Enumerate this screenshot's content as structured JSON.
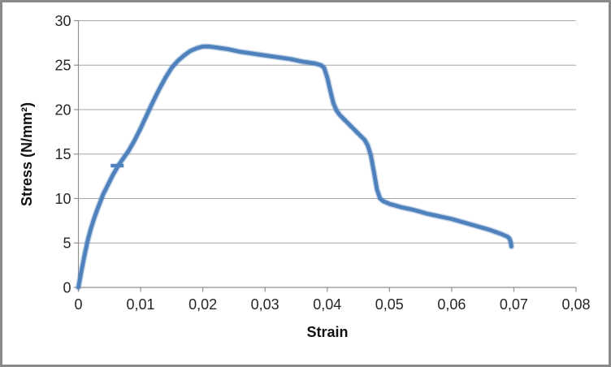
{
  "chart_data": {
    "type": "scatter",
    "title": "",
    "xlabel": "Strain",
    "ylabel": "Stress (N/mm²)",
    "xlim": [
      0,
      0.08
    ],
    "ylim": [
      0,
      30
    ],
    "x_ticks": [
      0,
      0.01,
      0.02,
      0.03,
      0.04,
      0.05,
      0.06,
      0.07,
      0.08
    ],
    "x_tick_labels": [
      "0",
      "0,01",
      "0,02",
      "0,03",
      "0,04",
      "0,05",
      "0,06",
      "0,07",
      "0,08"
    ],
    "y_ticks": [
      0,
      5,
      10,
      15,
      20,
      25,
      30
    ],
    "y_tick_labels": [
      "0",
      "5",
      "10",
      "15",
      "20",
      "25",
      "30"
    ],
    "grid": "horizontal",
    "legend": "none",
    "series": [
      {
        "name": "stress-strain-curve",
        "color": "#4f81bd",
        "points": [
          [
            0.0,
            0.0
          ],
          [
            0.0005,
            1.9
          ],
          [
            0.001,
            3.7
          ],
          [
            0.0015,
            5.3
          ],
          [
            0.002,
            6.6
          ],
          [
            0.0025,
            7.7
          ],
          [
            0.003,
            8.7
          ],
          [
            0.0035,
            9.6
          ],
          [
            0.004,
            10.5
          ],
          [
            0.0045,
            11.2
          ],
          [
            0.005,
            11.9
          ],
          [
            0.0055,
            12.6
          ],
          [
            0.006,
            13.2
          ],
          [
            0.0065,
            13.8
          ],
          [
            0.007,
            14.3
          ],
          [
            0.008,
            15.3
          ],
          [
            0.009,
            16.5
          ],
          [
            0.01,
            17.9
          ],
          [
            0.011,
            19.4
          ],
          [
            0.012,
            20.9
          ],
          [
            0.013,
            22.3
          ],
          [
            0.014,
            23.6
          ],
          [
            0.015,
            24.7
          ],
          [
            0.016,
            25.5
          ],
          [
            0.017,
            26.1
          ],
          [
            0.018,
            26.6
          ],
          [
            0.019,
            26.9
          ],
          [
            0.02,
            27.1
          ],
          [
            0.021,
            27.1
          ],
          [
            0.022,
            27.0
          ],
          [
            0.024,
            26.8
          ],
          [
            0.026,
            26.5
          ],
          [
            0.028,
            26.3
          ],
          [
            0.03,
            26.1
          ],
          [
            0.032,
            25.9
          ],
          [
            0.034,
            25.7
          ],
          [
            0.036,
            25.4
          ],
          [
            0.038,
            25.2
          ],
          [
            0.039,
            25.0
          ],
          [
            0.0395,
            24.7
          ],
          [
            0.04,
            23.6
          ],
          [
            0.0405,
            22.1
          ],
          [
            0.041,
            20.7
          ],
          [
            0.0415,
            19.9
          ],
          [
            0.042,
            19.4
          ],
          [
            0.043,
            18.7
          ],
          [
            0.044,
            18.0
          ],
          [
            0.045,
            17.3
          ],
          [
            0.046,
            16.6
          ],
          [
            0.0465,
            16.0
          ],
          [
            0.047,
            14.9
          ],
          [
            0.0475,
            13.0
          ],
          [
            0.048,
            11.0
          ],
          [
            0.0485,
            10.0
          ],
          [
            0.049,
            9.7
          ],
          [
            0.05,
            9.4
          ],
          [
            0.052,
            9.0
          ],
          [
            0.054,
            8.7
          ],
          [
            0.056,
            8.3
          ],
          [
            0.058,
            8.0
          ],
          [
            0.06,
            7.7
          ],
          [
            0.062,
            7.3
          ],
          [
            0.064,
            6.9
          ],
          [
            0.066,
            6.5
          ],
          [
            0.068,
            6.0
          ],
          [
            0.069,
            5.7
          ],
          [
            0.0693,
            5.5
          ],
          [
            0.0695,
            5.1
          ],
          [
            0.0696,
            4.6
          ]
        ]
      }
    ],
    "marker": {
      "strain": 0.0063,
      "stress": 13.7,
      "shape": "horizontal-dash",
      "color": "#4f81bd"
    }
  },
  "style_colors": {
    "curve": "#4f81bd",
    "axis": "#8f8f8f",
    "gridline": "#a6a6a6",
    "tick_text": "#262626",
    "title_text": "#111111",
    "frame_border": "#8a8a8a",
    "background": "#ffffff"
  }
}
